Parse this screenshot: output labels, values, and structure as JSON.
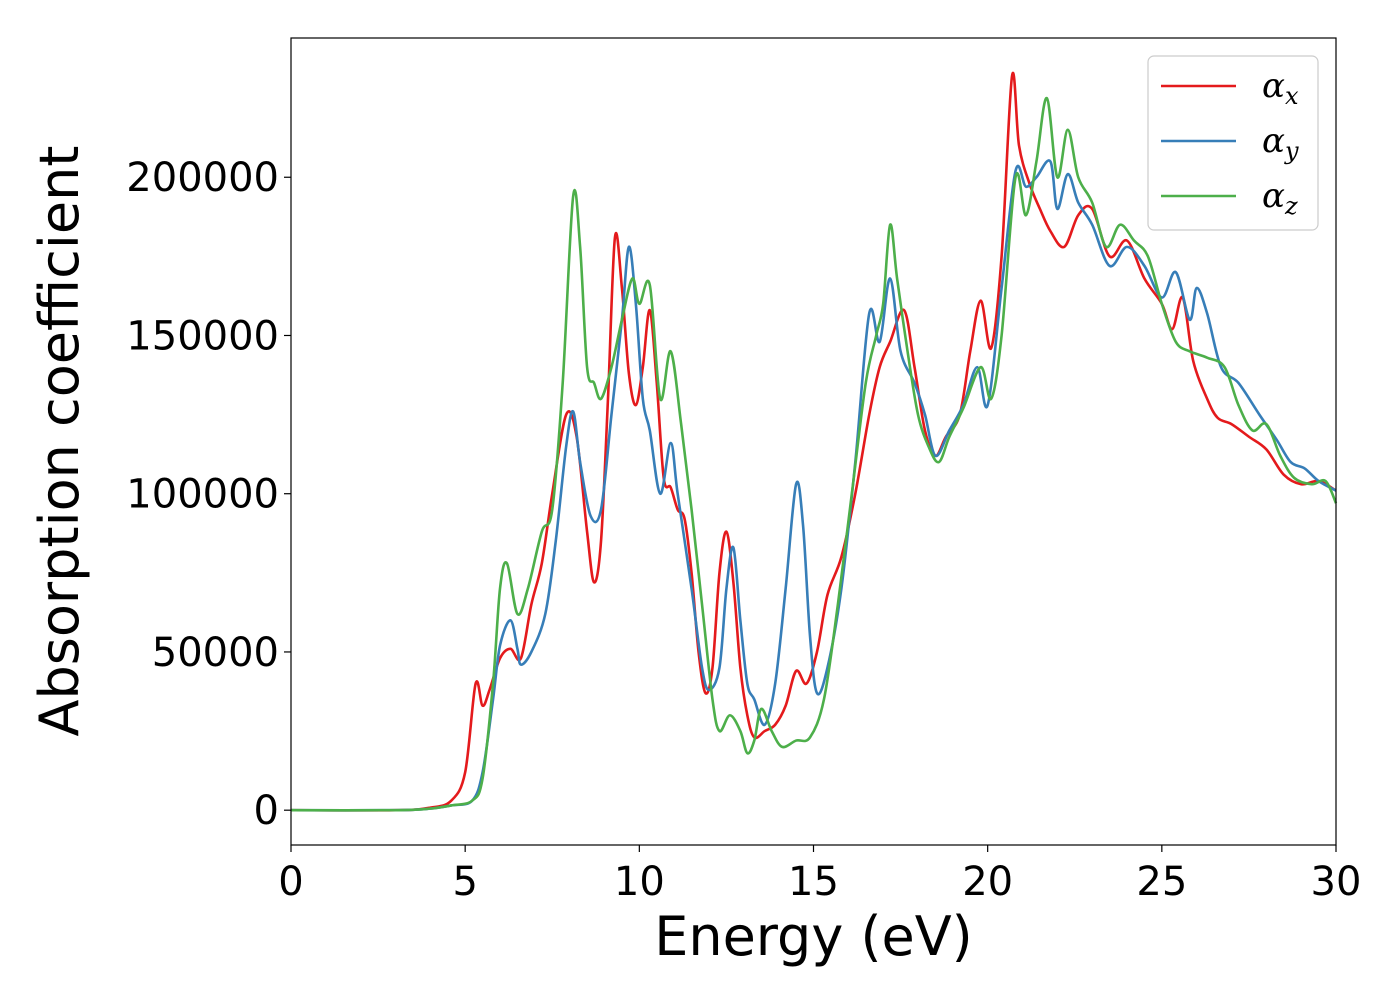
{
  "chart_data": {
    "type": "line",
    "xlabel": "Energy (eV)",
    "ylabel": "Absorption coefficient",
    "xlim": [
      0,
      30
    ],
    "ylim": [
      -11000,
      244000
    ],
    "xticks": [
      "0",
      "5",
      "10",
      "15",
      "20",
      "25",
      "30"
    ],
    "yticks": [
      "0",
      "50000",
      "100000",
      "150000",
      "200000"
    ],
    "grid": false,
    "legend_position": "top-right",
    "series": [
      {
        "name": "αx",
        "legend_base": "α",
        "legend_sub": "x",
        "color": "#e41a1c",
        "points": [
          [
            0,
            0
          ],
          [
            3,
            0
          ],
          [
            4,
            800
          ],
          [
            4.6,
            3000
          ],
          [
            5.0,
            12000
          ],
          [
            5.3,
            40000
          ],
          [
            5.5,
            33000
          ],
          [
            5.7,
            38000
          ],
          [
            6.0,
            48000
          ],
          [
            6.3,
            51000
          ],
          [
            6.6,
            48000
          ],
          [
            6.9,
            65000
          ],
          [
            7.2,
            78000
          ],
          [
            7.5,
            100000
          ],
          [
            7.9,
            125000
          ],
          [
            8.2,
            118000
          ],
          [
            8.5,
            88000
          ],
          [
            8.7,
            72000
          ],
          [
            8.9,
            85000
          ],
          [
            9.1,
            130000
          ],
          [
            9.3,
            181000
          ],
          [
            9.5,
            165000
          ],
          [
            9.7,
            138000
          ],
          [
            9.9,
            128000
          ],
          [
            10.1,
            140000
          ],
          [
            10.3,
            158000
          ],
          [
            10.5,
            135000
          ],
          [
            10.7,
            105000
          ],
          [
            10.9,
            102000
          ],
          [
            11.1,
            95000
          ],
          [
            11.3,
            92000
          ],
          [
            11.5,
            75000
          ],
          [
            11.7,
            50000
          ],
          [
            11.9,
            37000
          ],
          [
            12.1,
            45000
          ],
          [
            12.3,
            75000
          ],
          [
            12.5,
            88000
          ],
          [
            12.7,
            72000
          ],
          [
            12.9,
            45000
          ],
          [
            13.1,
            30000
          ],
          [
            13.3,
            23000
          ],
          [
            13.6,
            25000
          ],
          [
            13.9,
            27000
          ],
          [
            14.2,
            33000
          ],
          [
            14.5,
            44000
          ],
          [
            14.8,
            40000
          ],
          [
            15.1,
            50000
          ],
          [
            15.4,
            68000
          ],
          [
            15.8,
            80000
          ],
          [
            16.2,
            100000
          ],
          [
            16.6,
            125000
          ],
          [
            16.9,
            140000
          ],
          [
            17.2,
            148000
          ],
          [
            17.6,
            158000
          ],
          [
            17.9,
            140000
          ],
          [
            18.2,
            120000
          ],
          [
            18.5,
            112000
          ],
          [
            18.8,
            118000
          ],
          [
            19.2,
            125000
          ],
          [
            19.5,
            145000
          ],
          [
            19.8,
            161000
          ],
          [
            20.1,
            146000
          ],
          [
            20.4,
            175000
          ],
          [
            20.7,
            232000
          ],
          [
            20.9,
            210000
          ],
          [
            21.2,
            198000
          ],
          [
            21.5,
            190000
          ],
          [
            21.8,
            183000
          ],
          [
            22.2,
            178000
          ],
          [
            22.6,
            188000
          ],
          [
            23.0,
            190000
          ],
          [
            23.5,
            175000
          ],
          [
            24.0,
            180000
          ],
          [
            24.5,
            168000
          ],
          [
            25.0,
            160000
          ],
          [
            25.3,
            152000
          ],
          [
            25.6,
            162000
          ],
          [
            25.9,
            142000
          ],
          [
            26.3,
            130000
          ],
          [
            26.6,
            124000
          ],
          [
            27.0,
            122000
          ],
          [
            27.5,
            118000
          ],
          [
            28.0,
            114000
          ],
          [
            28.5,
            106000
          ],
          [
            29.0,
            103000
          ],
          [
            29.5,
            104000
          ],
          [
            30,
            101000
          ]
        ]
      },
      {
        "name": "αy",
        "legend_base": "α",
        "legend_sub": "y",
        "color": "#377eb8",
        "points": [
          [
            0,
            0
          ],
          [
            3,
            0
          ],
          [
            4,
            500
          ],
          [
            4.6,
            1500
          ],
          [
            5.2,
            3000
          ],
          [
            5.5,
            12000
          ],
          [
            5.8,
            35000
          ],
          [
            6.0,
            52000
          ],
          [
            6.3,
            60000
          ],
          [
            6.5,
            51000
          ],
          [
            6.6,
            46000
          ],
          [
            6.9,
            50000
          ],
          [
            7.3,
            62000
          ],
          [
            7.6,
            85000
          ],
          [
            7.9,
            115000
          ],
          [
            8.1,
            126000
          ],
          [
            8.3,
            110000
          ],
          [
            8.6,
            93000
          ],
          [
            8.9,
            95000
          ],
          [
            9.2,
            125000
          ],
          [
            9.5,
            155000
          ],
          [
            9.7,
            178000
          ],
          [
            9.9,
            160000
          ],
          [
            10.1,
            130000
          ],
          [
            10.3,
            120000
          ],
          [
            10.6,
            100000
          ],
          [
            10.9,
            116000
          ],
          [
            11.1,
            100000
          ],
          [
            11.5,
            70000
          ],
          [
            11.8,
            45000
          ],
          [
            12.0,
            38000
          ],
          [
            12.3,
            45000
          ],
          [
            12.5,
            70000
          ],
          [
            12.7,
            83000
          ],
          [
            12.9,
            60000
          ],
          [
            13.1,
            40000
          ],
          [
            13.3,
            35000
          ],
          [
            13.6,
            27000
          ],
          [
            13.9,
            40000
          ],
          [
            14.2,
            70000
          ],
          [
            14.5,
            103000
          ],
          [
            14.7,
            90000
          ],
          [
            14.9,
            55000
          ],
          [
            15.1,
            37000
          ],
          [
            15.4,
            45000
          ],
          [
            15.8,
            70000
          ],
          [
            16.2,
            110000
          ],
          [
            16.6,
            157000
          ],
          [
            16.9,
            148000
          ],
          [
            17.2,
            168000
          ],
          [
            17.5,
            145000
          ],
          [
            17.9,
            135000
          ],
          [
            18.2,
            125000
          ],
          [
            18.5,
            112000
          ],
          [
            18.9,
            120000
          ],
          [
            19.3,
            128000
          ],
          [
            19.7,
            140000
          ],
          [
            20.0,
            128000
          ],
          [
            20.4,
            165000
          ],
          [
            20.8,
            202000
          ],
          [
            21.1,
            197000
          ],
          [
            21.4,
            200000
          ],
          [
            21.8,
            205000
          ],
          [
            22.0,
            190000
          ],
          [
            22.3,
            201000
          ],
          [
            22.6,
            192000
          ],
          [
            23.0,
            185000
          ],
          [
            23.5,
            172000
          ],
          [
            24.0,
            178000
          ],
          [
            24.5,
            172000
          ],
          [
            25.0,
            162000
          ],
          [
            25.4,
            170000
          ],
          [
            25.8,
            155000
          ],
          [
            26.0,
            165000
          ],
          [
            26.3,
            157000
          ],
          [
            26.7,
            140000
          ],
          [
            27.2,
            135000
          ],
          [
            27.8,
            125000
          ],
          [
            28.3,
            117000
          ],
          [
            28.7,
            110000
          ],
          [
            29.1,
            108000
          ],
          [
            29.5,
            104000
          ],
          [
            30,
            101000
          ]
        ]
      },
      {
        "name": "αz",
        "legend_base": "α",
        "legend_sub": "z",
        "color": "#4daf4a",
        "points": [
          [
            0,
            0
          ],
          [
            3,
            0
          ],
          [
            4,
            500
          ],
          [
            4.6,
            1500
          ],
          [
            5.2,
            3000
          ],
          [
            5.5,
            10000
          ],
          [
            5.8,
            40000
          ],
          [
            6.0,
            70000
          ],
          [
            6.2,
            78000
          ],
          [
            6.5,
            62000
          ],
          [
            6.8,
            70000
          ],
          [
            7.2,
            88000
          ],
          [
            7.5,
            95000
          ],
          [
            7.8,
            135000
          ],
          [
            8.1,
            194000
          ],
          [
            8.3,
            178000
          ],
          [
            8.5,
            140000
          ],
          [
            8.7,
            135000
          ],
          [
            8.9,
            130000
          ],
          [
            9.2,
            140000
          ],
          [
            9.5,
            155000
          ],
          [
            9.8,
            168000
          ],
          [
            10.0,
            160000
          ],
          [
            10.3,
            166000
          ],
          [
            10.6,
            130000
          ],
          [
            10.9,
            145000
          ],
          [
            11.2,
            122000
          ],
          [
            11.5,
            95000
          ],
          [
            11.8,
            65000
          ],
          [
            12.1,
            35000
          ],
          [
            12.3,
            25000
          ],
          [
            12.6,
            30000
          ],
          [
            12.9,
            25000
          ],
          [
            13.1,
            18000
          ],
          [
            13.3,
            22000
          ],
          [
            13.5,
            32000
          ],
          [
            13.8,
            25000
          ],
          [
            14.1,
            20000
          ],
          [
            14.5,
            22000
          ],
          [
            14.9,
            23000
          ],
          [
            15.3,
            35000
          ],
          [
            15.7,
            65000
          ],
          [
            16.1,
            100000
          ],
          [
            16.5,
            135000
          ],
          [
            16.8,
            150000
          ],
          [
            17.0,
            160000
          ],
          [
            17.2,
            185000
          ],
          [
            17.4,
            168000
          ],
          [
            17.7,
            145000
          ],
          [
            18.0,
            125000
          ],
          [
            18.3,
            115000
          ],
          [
            18.6,
            110000
          ],
          [
            18.9,
            118000
          ],
          [
            19.3,
            127000
          ],
          [
            19.8,
            140000
          ],
          [
            20.1,
            130000
          ],
          [
            20.4,
            150000
          ],
          [
            20.8,
            200000
          ],
          [
            21.1,
            188000
          ],
          [
            21.4,
            205000
          ],
          [
            21.7,
            225000
          ],
          [
            22.0,
            200000
          ],
          [
            22.3,
            215000
          ],
          [
            22.6,
            200000
          ],
          [
            23.0,
            192000
          ],
          [
            23.4,
            178000
          ],
          [
            23.8,
            185000
          ],
          [
            24.2,
            180000
          ],
          [
            24.6,
            175000
          ],
          [
            25.0,
            160000
          ],
          [
            25.4,
            148000
          ],
          [
            25.8,
            145000
          ],
          [
            26.3,
            143000
          ],
          [
            26.8,
            140000
          ],
          [
            27.2,
            128000
          ],
          [
            27.6,
            120000
          ],
          [
            28.0,
            122000
          ],
          [
            28.4,
            112000
          ],
          [
            28.8,
            105000
          ],
          [
            29.3,
            103000
          ],
          [
            29.7,
            104000
          ],
          [
            30,
            97000
          ]
        ]
      }
    ]
  }
}
